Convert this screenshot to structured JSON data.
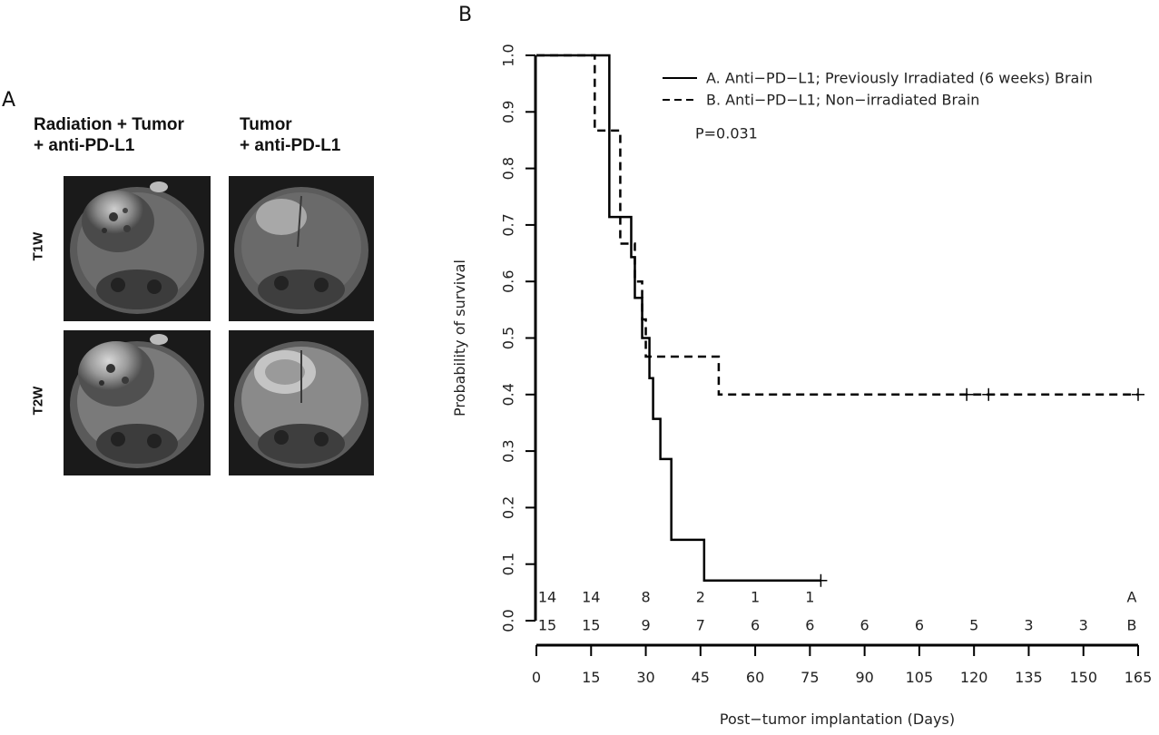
{
  "panel_a": {
    "letter": "A",
    "columns": [
      {
        "line1": "Radiation + Tumor",
        "line2": "+ anti-PD-L1"
      },
      {
        "line1": "Tumor",
        "line2": "+ anti-PD-L1"
      }
    ],
    "rows": [
      "T1W",
      "T2W"
    ]
  },
  "panel_b": {
    "letter": "B"
  },
  "chart_data": {
    "type": "line",
    "subtype": "kaplan-meier",
    "xlabel": "Post−tumor implantation (Days)",
    "ylabel": "Probability of survival",
    "xlim": [
      0,
      165
    ],
    "ylim": [
      0,
      1
    ],
    "x_ticks": [
      0,
      15,
      30,
      45,
      60,
      75,
      90,
      105,
      120,
      135,
      150,
      165
    ],
    "y_ticks": [
      "0.0",
      "0.1",
      "0.2",
      "0.3",
      "0.4",
      "0.5",
      "0.6",
      "0.7",
      "0.8",
      "0.9",
      "1.0"
    ],
    "annotation": "P=0.031",
    "legend_position": "top-right",
    "series": [
      {
        "name": "A. Anti−PD−L1; Previously Irradiated (6 weeks) Brain",
        "style": "solid",
        "steps": [
          [
            0,
            1.0
          ],
          [
            20,
            0.714
          ],
          [
            26,
            0.643
          ],
          [
            27,
            0.571
          ],
          [
            29,
            0.5
          ],
          [
            31,
            0.429
          ],
          [
            32,
            0.357
          ],
          [
            34,
            0.286
          ],
          [
            37,
            0.143
          ],
          [
            46,
            0.071
          ],
          [
            78,
            0.071
          ]
        ],
        "censored": [
          [
            78,
            0.071
          ]
        ]
      },
      {
        "name": "B. Anti−PD−L1; Non−irradiated Brain",
        "style": "dashed",
        "steps": [
          [
            0,
            1.0
          ],
          [
            16,
            0.867
          ],
          [
            23,
            0.667
          ],
          [
            27,
            0.6
          ],
          [
            29,
            0.533
          ],
          [
            30,
            0.467
          ],
          [
            50,
            0.4
          ],
          [
            165,
            0.4
          ]
        ],
        "censored": [
          [
            118,
            0.4
          ],
          [
            124,
            0.4
          ],
          [
            165,
            0.4
          ]
        ]
      }
    ],
    "risk_table": {
      "x": [
        0,
        15,
        30,
        45,
        60,
        75,
        90,
        105,
        120,
        135,
        150
      ],
      "rows": [
        {
          "label": "A",
          "values": [
            "14",
            "14",
            "8",
            "2",
            "1",
            "1",
            "",
            "",
            "",
            "",
            ""
          ]
        },
        {
          "label": "B",
          "values": [
            "15",
            "15",
            "9",
            "7",
            "6",
            "6",
            "6",
            "6",
            "5",
            "3",
            "3"
          ]
        }
      ]
    }
  }
}
